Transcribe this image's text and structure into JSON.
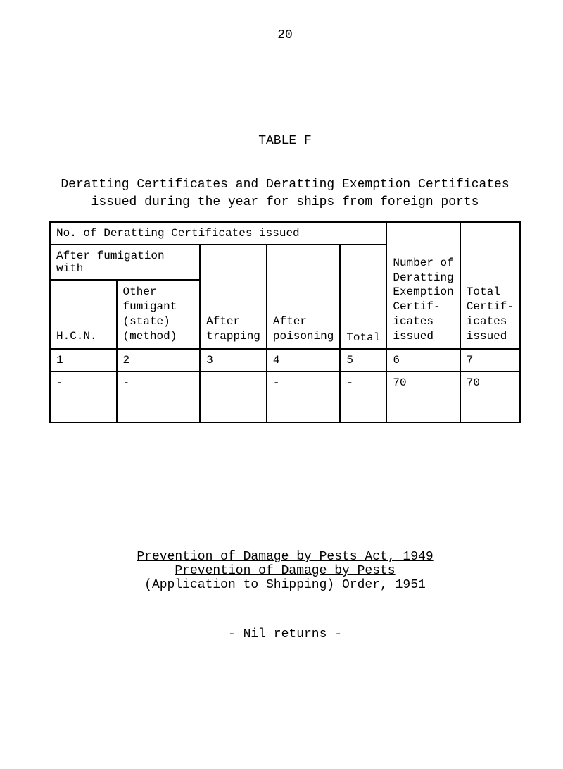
{
  "page_number": "20",
  "table_label": "TABLE  F",
  "caption_line1": "Deratting Certificates and Deratting Exemption Certificates",
  "caption_line2": "issued during the year for ships from foreign ports",
  "table": {
    "top_header": "No. of Deratting Certificates issued",
    "col1_2_header": "After fumigation with",
    "col1_sub": "H.C.N.",
    "col2_sub_l1": "Other",
    "col2_sub_l2": "fumigant",
    "col2_sub_l3": "(state)",
    "col2_sub_l4": "(method)",
    "col3_l1": "After",
    "col3_l2": "trapping",
    "col4_l1": "After",
    "col4_l2": "poisoning",
    "col5": "Total",
    "col6_l1": "Number of",
    "col6_l2": "Deratting",
    "col6_l3": "Exemption",
    "col6_l4": "Certif-",
    "col6_l5": "icates",
    "col6_l6": "issued",
    "col7_l1": "Total",
    "col7_l2": "Certif-",
    "col7_l3": "icates",
    "col7_l4": "issued",
    "nums": [
      "1",
      "2",
      "3",
      "4",
      "5",
      "6",
      "7"
    ],
    "data": {
      "c1": "-",
      "c2": "-",
      "c3": "",
      "c4": "-",
      "c5": "-",
      "c6": "70",
      "c7": "70"
    }
  },
  "links": {
    "l1": "Prevention of Damage by Pests Act, 1949",
    "l2": "Prevention of Damage by Pests",
    "l3": "(Application to Shipping) Order, 1951"
  },
  "nil_returns": "- Nil returns -"
}
